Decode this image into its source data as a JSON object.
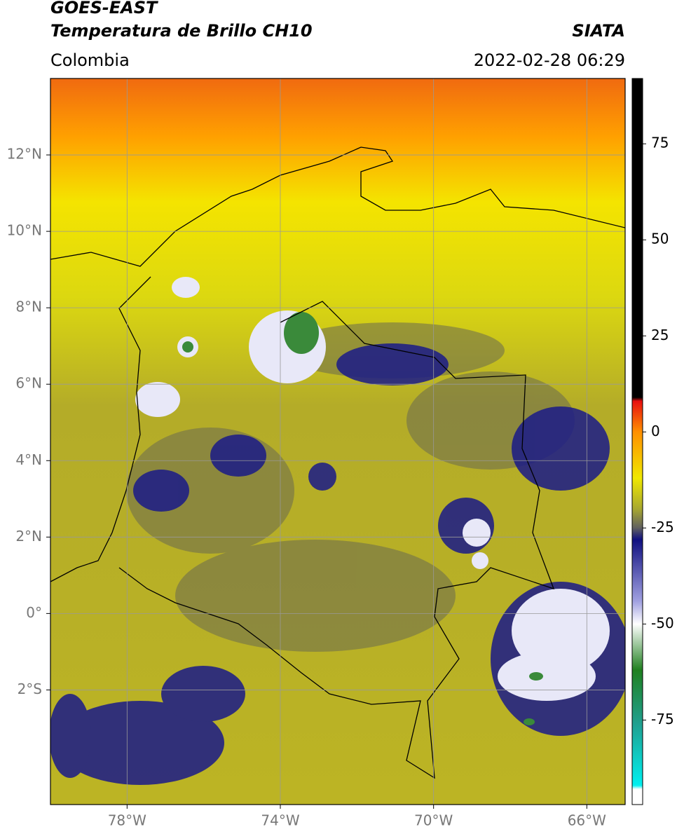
{
  "header": {
    "title": "GOES-EAST",
    "subtitle": "Temperatura de Brillo CH10",
    "source": "SIATA",
    "region": "Colombia",
    "timestamp": "2022-02-28 06:29"
  },
  "map": {
    "xlim": [
      -80,
      -65
    ],
    "ylim": [
      -5,
      14
    ],
    "xticks": [
      {
        "value": -78,
        "label": "78°W"
      },
      {
        "value": -74,
        "label": "74°W"
      },
      {
        "value": -70,
        "label": "70°W"
      },
      {
        "value": -66,
        "label": "66°W"
      }
    ],
    "yticks": [
      {
        "value": 12,
        "label": "12°N"
      },
      {
        "value": 10,
        "label": "10°N"
      },
      {
        "value": 8,
        "label": "8°N"
      },
      {
        "value": 6,
        "label": "6°N"
      },
      {
        "value": 4,
        "label": "4°N"
      },
      {
        "value": 2,
        "label": "2°N"
      },
      {
        "value": 0,
        "label": "0°"
      },
      {
        "value": -2,
        "label": "2°S"
      }
    ],
    "grid": true
  },
  "colorbar": {
    "clim": [
      -97,
      92
    ],
    "ticks": [
      75,
      50,
      25,
      0,
      -25,
      -50,
      -75
    ],
    "colormap": [
      {
        "value": 92,
        "color": "#000000"
      },
      {
        "value": 9,
        "color": "#000000"
      },
      {
        "value": 8,
        "color": "#e81010"
      },
      {
        "value": 0,
        "color": "#ff9000"
      },
      {
        "value": -12,
        "color": "#f0e800"
      },
      {
        "value": -20,
        "color": "#a8a830"
      },
      {
        "value": -25,
        "color": "#606060"
      },
      {
        "value": -28,
        "color": "#101080"
      },
      {
        "value": -44,
        "color": "#a0a0e0"
      },
      {
        "value": -50,
        "color": "#ffffff"
      },
      {
        "value": -62,
        "color": "#208020"
      },
      {
        "value": -76,
        "color": "#20a090"
      },
      {
        "value": -92,
        "color": "#00f0f0"
      },
      {
        "value": -93,
        "color": "#ffffff"
      },
      {
        "value": -97,
        "color": "#ffffff"
      }
    ]
  }
}
